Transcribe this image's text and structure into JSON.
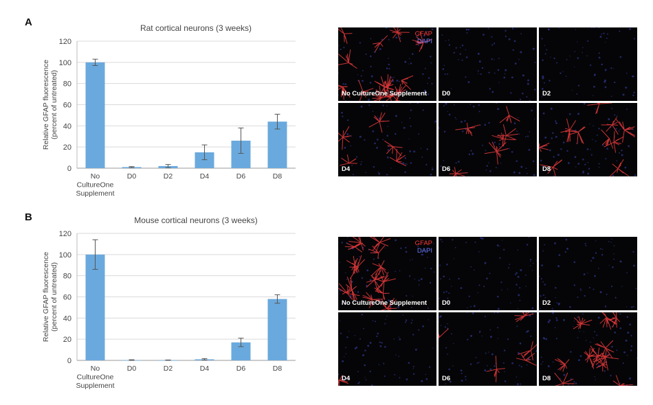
{
  "panels": [
    {
      "letter": "A",
      "legend": {
        "gfap": "GFAP",
        "dapi": "DAPI"
      },
      "tile_labels": [
        "No CultureOne Supplement",
        "D0",
        "D2",
        "D4",
        "D6",
        "D8"
      ],
      "tile_density": [
        1.0,
        0.0,
        0.0,
        0.35,
        0.45,
        0.7
      ]
    },
    {
      "letter": "B",
      "legend": {
        "gfap": "GFAP",
        "dapi": "DAPI"
      },
      "tile_labels": [
        "No CultureOne Supplement",
        "D0",
        "D2",
        "D4",
        "D6",
        "D8"
      ],
      "tile_density": [
        1.0,
        0.0,
        0.0,
        0.08,
        0.35,
        0.75
      ]
    }
  ],
  "chart_data": [
    {
      "type": "bar",
      "title": "Rat cortical neurons (3 weeks)",
      "ylabel": "Relative GFAP fluorescence",
      "ylabel2": "(percent of untreated)",
      "categories": [
        [
          "No",
          "CultureOne",
          "Supplement"
        ],
        [
          "D0"
        ],
        [
          "D2"
        ],
        [
          "D4"
        ],
        [
          "D6"
        ],
        [
          "D8"
        ]
      ],
      "values": [
        100,
        1,
        2,
        15,
        26,
        44
      ],
      "errors": [
        3,
        0.5,
        1.5,
        7,
        12,
        7
      ],
      "ylim": [
        0,
        120
      ],
      "yticks": [
        0,
        20,
        40,
        60,
        80,
        100,
        120
      ],
      "grid": true,
      "bar_color": "#6aa9dd"
    },
    {
      "type": "bar",
      "title": "Mouse cortical neurons (3 weeks)",
      "ylabel": "Relative GFAP fluorescence",
      "ylabel2": "(percent of untreated)",
      "categories": [
        [
          "No",
          "CultureOne",
          "Supplement"
        ],
        [
          "D0"
        ],
        [
          "D2"
        ],
        [
          "D4"
        ],
        [
          "D6"
        ],
        [
          "D8"
        ]
      ],
      "values": [
        100,
        0.3,
        0.2,
        1,
        17,
        58
      ],
      "errors": [
        14,
        0.3,
        0.2,
        0.7,
        4,
        4
      ],
      "ylim": [
        0,
        120
      ],
      "yticks": [
        0,
        20,
        40,
        60,
        80,
        100,
        120
      ],
      "grid": true,
      "bar_color": "#6aa9dd"
    }
  ]
}
